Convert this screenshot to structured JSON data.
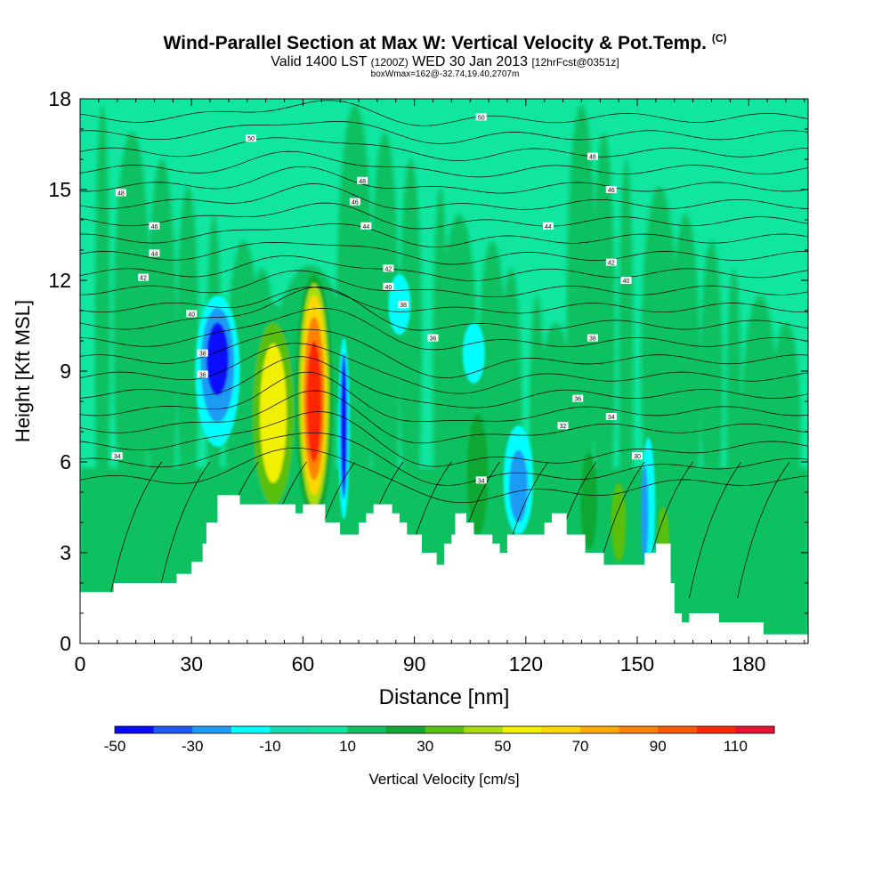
{
  "header": {
    "title_main": "Wind-Parallel Section at Max W: Vertical Velocity & Pot.Temp.",
    "title_mark": "(C)",
    "valid_a": "Valid 1400 LST",
    "valid_b": "(1200Z)",
    "valid_c": "WED 30 Jan 2013",
    "valid_d": "[12hrFcst@0351z]",
    "box_info": "boxWmax=162@-32.74,19.40,2707m"
  },
  "chart_data": {
    "type": "heatmap",
    "xlabel": "Distance [nm]",
    "ylabel": "Height [Kft MSL]",
    "xlim": [
      0,
      196
    ],
    "ylim": [
      0,
      18
    ],
    "x_ticks": [
      0,
      30,
      60,
      90,
      120,
      150,
      180
    ],
    "y_ticks": [
      0,
      3,
      6,
      9,
      12,
      15,
      18
    ],
    "colorbar": {
      "label": "Vertical Velocity [cm/s]",
      "tick_labels": [
        -50,
        -30,
        -10,
        10,
        30,
        50,
        70,
        90,
        110
      ],
      "levels": [
        -50,
        -40,
        -30,
        -20,
        -10,
        0,
        10,
        20,
        30,
        40,
        50,
        60,
        70,
        80,
        90,
        100,
        110,
        120
      ],
      "colors": [
        "#0a0aff",
        "#1e5af5",
        "#1e9bf5",
        "#00ffff",
        "#10dcb0",
        "#10e6a0",
        "#10c060",
        "#10a830",
        "#58c010",
        "#a8dc10",
        "#f0f000",
        "#ffd700",
        "#ffaa00",
        "#ff8200",
        "#ff5a00",
        "#ff2800",
        "#e61432"
      ]
    },
    "background_value_label": "0 to 10 cm/s",
    "terrain_profile": [
      [
        0,
        1.7
      ],
      [
        9,
        1.7
      ],
      [
        9,
        2.0
      ],
      [
        26,
        2.0
      ],
      [
        26,
        2.3
      ],
      [
        30,
        2.3
      ],
      [
        30,
        2.7
      ],
      [
        33,
        2.7
      ],
      [
        33,
        3.3
      ],
      [
        34,
        3.3
      ],
      [
        34,
        4.0
      ],
      [
        37,
        4.0
      ],
      [
        37,
        4.9
      ],
      [
        43,
        4.9
      ],
      [
        43,
        4.6
      ],
      [
        58,
        4.6
      ],
      [
        58,
        4.3
      ],
      [
        60,
        4.3
      ],
      [
        60,
        4.6
      ],
      [
        66,
        4.6
      ],
      [
        66,
        4.0
      ],
      [
        70,
        4.0
      ],
      [
        70,
        3.6
      ],
      [
        75,
        3.6
      ],
      [
        75,
        4.0
      ],
      [
        77,
        4.0
      ],
      [
        77,
        4.3
      ],
      [
        79,
        4.3
      ],
      [
        79,
        4.6
      ],
      [
        84,
        4.6
      ],
      [
        84,
        4.3
      ],
      [
        86,
        4.3
      ],
      [
        86,
        4.0
      ],
      [
        88,
        4.0
      ],
      [
        88,
        3.6
      ],
      [
        92,
        3.6
      ],
      [
        92,
        3.0
      ],
      [
        96,
        3.0
      ],
      [
        96,
        2.6
      ],
      [
        98,
        2.6
      ],
      [
        98,
        3.3
      ],
      [
        100,
        3.3
      ],
      [
        100,
        3.6
      ],
      [
        101,
        3.6
      ],
      [
        101,
        4.3
      ],
      [
        104,
        4.3
      ],
      [
        104,
        4.0
      ],
      [
        106,
        4.0
      ],
      [
        106,
        3.6
      ],
      [
        111,
        3.6
      ],
      [
        111,
        3.3
      ],
      [
        113,
        3.3
      ],
      [
        113,
        3.0
      ],
      [
        115,
        3.0
      ],
      [
        115,
        3.6
      ],
      [
        125,
        3.6
      ],
      [
        125,
        4.0
      ],
      [
        127,
        4.0
      ],
      [
        127,
        4.3
      ],
      [
        131,
        4.3
      ],
      [
        131,
        3.6
      ],
      [
        136,
        3.6
      ],
      [
        136,
        3.0
      ],
      [
        141,
        3.0
      ],
      [
        141,
        2.6
      ],
      [
        152,
        2.6
      ],
      [
        152,
        3.0
      ],
      [
        155,
        3.0
      ],
      [
        155,
        3.3
      ],
      [
        159,
        3.3
      ],
      [
        159,
        2.0
      ],
      [
        160,
        2.0
      ],
      [
        160,
        1.0
      ],
      [
        162,
        1.0
      ],
      [
        162,
        0.7
      ],
      [
        164,
        0.7
      ],
      [
        164,
        1.0
      ],
      [
        172,
        1.0
      ],
      [
        172,
        0.7
      ],
      [
        184,
        0.7
      ],
      [
        184,
        0.3
      ],
      [
        196,
        0.3
      ]
    ],
    "cells": [
      {
        "x": 37,
        "y": 9.4,
        "rx": 3.0,
        "ry": 1.2,
        "v": -45
      },
      {
        "x": 37,
        "y": 9.2,
        "rx": 4.5,
        "ry": 1.9,
        "v": -30
      },
      {
        "x": 37,
        "y": 9.0,
        "rx": 6.0,
        "ry": 2.5,
        "v": -12
      },
      {
        "x": 52,
        "y": 7.6,
        "rx": 3.6,
        "ry": 2.3,
        "v": 50
      },
      {
        "x": 52,
        "y": 7.6,
        "rx": 5.5,
        "ry": 3.0,
        "v": 35
      },
      {
        "x": 52,
        "y": 7.6,
        "rx": 7.5,
        "ry": 3.6,
        "v": 15
      },
      {
        "x": 63,
        "y": 8.0,
        "rx": 2.0,
        "ry": 2.0,
        "v": 105
      },
      {
        "x": 63,
        "y": 8.1,
        "rx": 2.8,
        "ry": 2.7,
        "v": 85
      },
      {
        "x": 63,
        "y": 8.2,
        "rx": 3.4,
        "ry": 3.3,
        "v": 65
      },
      {
        "x": 63,
        "y": 8.2,
        "rx": 4.1,
        "ry": 3.7,
        "v": 45
      },
      {
        "x": 63,
        "y": 8.1,
        "rx": 5.0,
        "ry": 4.1,
        "v": 25
      },
      {
        "x": 71,
        "y": 7.2,
        "rx": 0.9,
        "ry": 2.4,
        "v": -50
      },
      {
        "x": 71,
        "y": 7.1,
        "rx": 1.5,
        "ry": 3.0,
        "v": -20
      },
      {
        "x": 75,
        "y": 7.5,
        "rx": 2.5,
        "ry": 3.5,
        "v": 15
      },
      {
        "x": 118,
        "y": 5.2,
        "rx": 2.5,
        "ry": 1.2,
        "v": -30
      },
      {
        "x": 118,
        "y": 5.4,
        "rx": 4.0,
        "ry": 1.8,
        "v": -12
      },
      {
        "x": 152,
        "y": 4.3,
        "rx": 1.0,
        "ry": 1.6,
        "v": -30
      },
      {
        "x": 153,
        "y": 4.6,
        "rx": 1.8,
        "ry": 2.2,
        "v": -12
      },
      {
        "x": 157,
        "y": 3.5,
        "rx": 1.6,
        "ry": 1.0,
        "v": 35
      },
      {
        "x": 107,
        "y": 5.6,
        "rx": 2.8,
        "ry": 2.0,
        "v": 25
      },
      {
        "x": 100,
        "y": 6.0,
        "rx": 2.0,
        "ry": 2.0,
        "v": 15
      },
      {
        "x": 137,
        "y": 4.7,
        "rx": 2.2,
        "ry": 1.6,
        "v": 25
      },
      {
        "x": 145,
        "y": 4.0,
        "rx": 2.0,
        "ry": 1.3,
        "v": 35
      },
      {
        "x": 22,
        "y": 5.0,
        "rx": 2.0,
        "ry": 1.8,
        "v": 15
      },
      {
        "x": 86,
        "y": 11.2,
        "rx": 3.0,
        "ry": 1.0,
        "v": -12
      },
      {
        "x": 106,
        "y": 9.6,
        "rx": 3.0,
        "ry": 1.0,
        "v": -12
      }
    ],
    "isentrope_labels": [
      {
        "x": 10,
        "y": 6.2,
        "text": "34"
      },
      {
        "x": 30,
        "y": 10.9,
        "text": "40"
      },
      {
        "x": 33,
        "y": 9.6,
        "text": "38"
      },
      {
        "x": 33,
        "y": 8.9,
        "text": "36"
      },
      {
        "x": 17,
        "y": 12.1,
        "text": "42"
      },
      {
        "x": 20,
        "y": 12.9,
        "text": "44"
      },
      {
        "x": 20,
        "y": 13.8,
        "text": "46"
      },
      {
        "x": 11,
        "y": 14.9,
        "text": "48"
      },
      {
        "x": 46,
        "y": 16.7,
        "text": "50"
      },
      {
        "x": 76,
        "y": 15.3,
        "text": "48"
      },
      {
        "x": 74,
        "y": 14.6,
        "text": "46"
      },
      {
        "x": 77,
        "y": 13.8,
        "text": "44"
      },
      {
        "x": 83,
        "y": 12.4,
        "text": "42"
      },
      {
        "x": 83,
        "y": 11.8,
        "text": "40"
      },
      {
        "x": 87,
        "y": 11.2,
        "text": "38"
      },
      {
        "x": 95,
        "y": 10.1,
        "text": "36"
      },
      {
        "x": 108,
        "y": 17.4,
        "text": "50"
      },
      {
        "x": 138,
        "y": 16.1,
        "text": "48"
      },
      {
        "x": 143,
        "y": 15.0,
        "text": "46"
      },
      {
        "x": 126,
        "y": 13.8,
        "text": "44"
      },
      {
        "x": 143,
        "y": 12.6,
        "text": "42"
      },
      {
        "x": 147,
        "y": 12.0,
        "text": "40"
      },
      {
        "x": 138,
        "y": 10.1,
        "text": "38"
      },
      {
        "x": 134,
        "y": 8.1,
        "text": "36"
      },
      {
        "x": 143,
        "y": 7.5,
        "text": "34"
      },
      {
        "x": 130,
        "y": 7.2,
        "text": "32"
      },
      {
        "x": 108,
        "y": 5.4,
        "text": "34"
      },
      {
        "x": 150,
        "y": 6.2,
        "text": "30"
      }
    ]
  }
}
